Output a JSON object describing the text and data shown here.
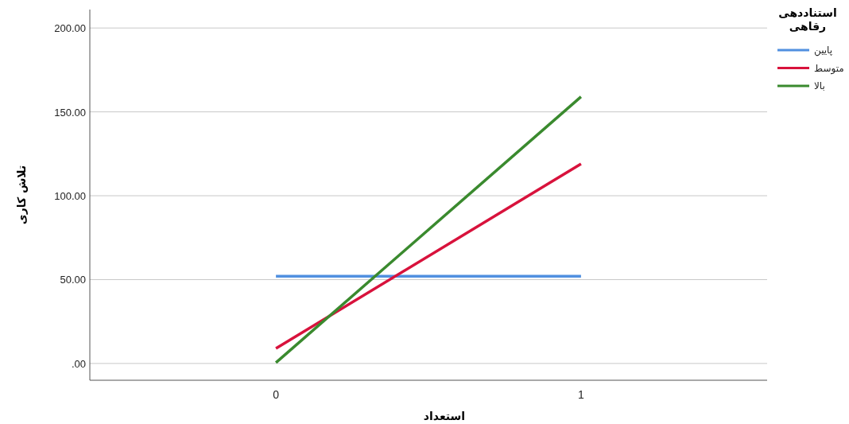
{
  "chart_data": {
    "type": "line",
    "xlabel": "استعداد",
    "ylabel": "تلاش کاری",
    "legend_title": "استناددهی رقاهی",
    "x": [
      0,
      1
    ],
    "xlim": [
      -0.61,
      1.61
    ],
    "xticks": [
      0,
      1
    ],
    "ylim": [
      -10,
      211
    ],
    "yticks": [
      {
        "value": 0,
        "label": ".00"
      },
      {
        "value": 50,
        "label": "50.00"
      },
      {
        "value": 100,
        "label": "100.00"
      },
      {
        "value": 150,
        "label": "150.00"
      },
      {
        "value": 200,
        "label": "200.00"
      }
    ],
    "grid": "y",
    "legend": "top right",
    "series": [
      {
        "name": "پایین",
        "color": "#5190e0",
        "values": [
          52,
          52
        ]
      },
      {
        "name": "متوسط",
        "color": "#d8123c",
        "values": [
          9,
          119
        ]
      },
      {
        "name": "بالا",
        "color": "#3a8a2e",
        "values": [
          0.5,
          159
        ]
      }
    ]
  }
}
